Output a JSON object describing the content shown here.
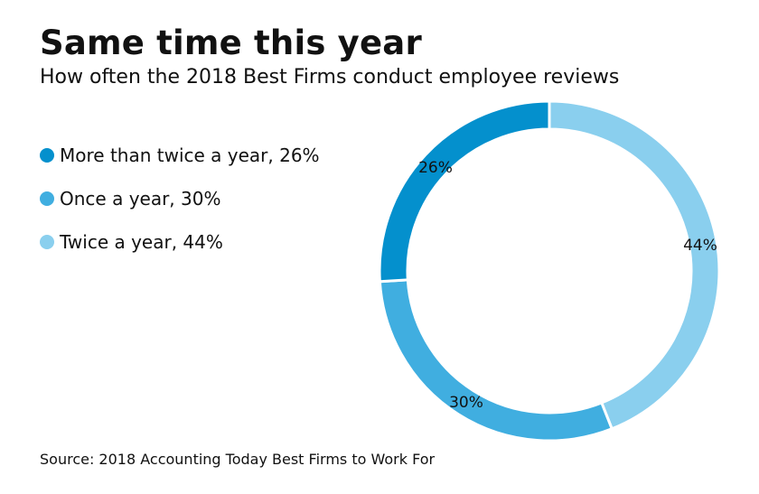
{
  "title": "Same time this year",
  "subtitle": "How often the 2018 Best Firms conduct employee reviews",
  "legend": [
    {
      "label": "More than twice a year, 26%",
      "color": "#0490cd"
    },
    {
      "label": "Once a year, 30%",
      "color": "#40aee0"
    },
    {
      "label": "Twice a year, 44%",
      "color": "#8acfee"
    }
  ],
  "source": "Source: 2018 Accounting Today Best Firms to Work For",
  "chart_data": {
    "type": "pie",
    "variant": "donut",
    "start": "12 o'clock, clockwise",
    "legend_placement": "left",
    "slices": [
      {
        "name": "Twice a year",
        "value": 44,
        "label": "44%",
        "color": "#8acfee"
      },
      {
        "name": "Once a year",
        "value": 30,
        "label": "30%",
        "color": "#40aee0"
      },
      {
        "name": "More than twice a year",
        "value": 26,
        "label": "26%",
        "color": "#0490cd"
      }
    ]
  }
}
